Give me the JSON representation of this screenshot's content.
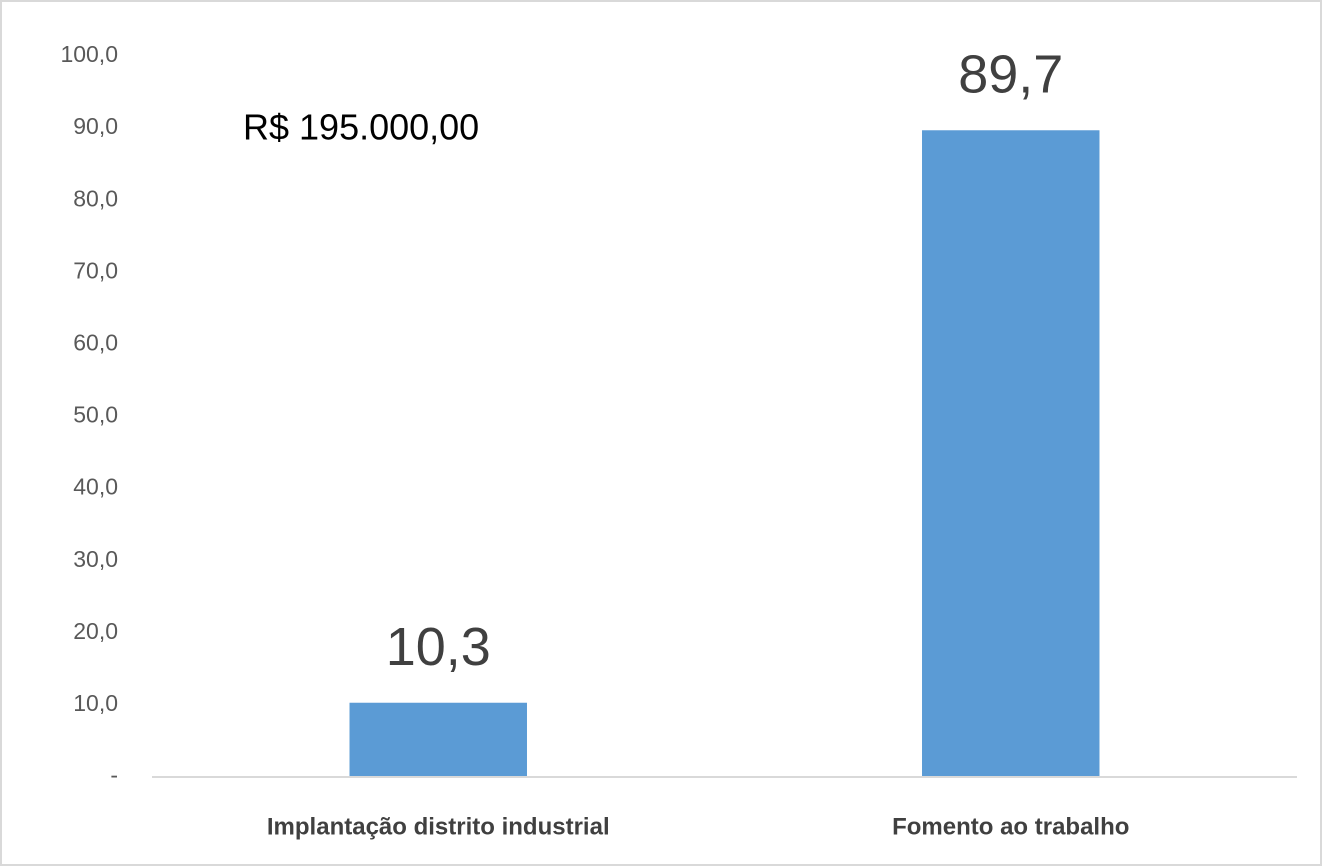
{
  "chart_data": {
    "type": "bar",
    "annotation": "R$ 195.000,00",
    "categories": [
      "Implantação distrito industrial",
      "Fomento ao trabalho"
    ],
    "values": [
      10.3,
      89.7
    ],
    "value_labels": [
      "10,3",
      "89,7"
    ],
    "color": "#5b9bd5",
    "ylim": [
      0,
      100
    ],
    "yticks": [
      {
        "value": 0,
        "label": "-"
      },
      {
        "value": 10,
        "label": "10,0"
      },
      {
        "value": 20,
        "label": "20,0"
      },
      {
        "value": 30,
        "label": "30,0"
      },
      {
        "value": 40,
        "label": "40,0"
      },
      {
        "value": 50,
        "label": "50,0"
      },
      {
        "value": 60,
        "label": "60,0"
      },
      {
        "value": 70,
        "label": "70,0"
      },
      {
        "value": 80,
        "label": "80,0"
      },
      {
        "value": 90,
        "label": "90,0"
      },
      {
        "value": 100,
        "label": "100,0"
      }
    ],
    "grid": false
  }
}
